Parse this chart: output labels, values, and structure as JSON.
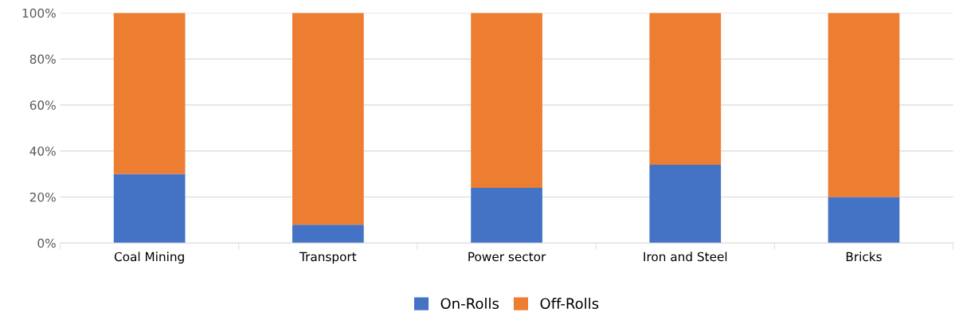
{
  "chart_data": {
    "type": "bar",
    "stacked": true,
    "categories": [
      "Coal Mining",
      "Transport",
      "Power sector",
      "Iron and Steel",
      "Bricks"
    ],
    "series": [
      {
        "name": "On-Rolls",
        "color": "#4472c4",
        "values": [
          30,
          8,
          24,
          34,
          20
        ]
      },
      {
        "name": "Off-Rolls",
        "color": "#ed7d31",
        "values": [
          70,
          92,
          76,
          66,
          80
        ]
      }
    ],
    "ylim": [
      0,
      100
    ],
    "yticks": [
      {
        "value": 0,
        "label": "0%"
      },
      {
        "value": 20,
        "label": "20%"
      },
      {
        "value": 40,
        "label": "40%"
      },
      {
        "value": 60,
        "label": "60%"
      },
      {
        "value": 80,
        "label": "80%"
      },
      {
        "value": 100,
        "label": "100%"
      }
    ],
    "grid": "y",
    "legend": "bottom"
  }
}
